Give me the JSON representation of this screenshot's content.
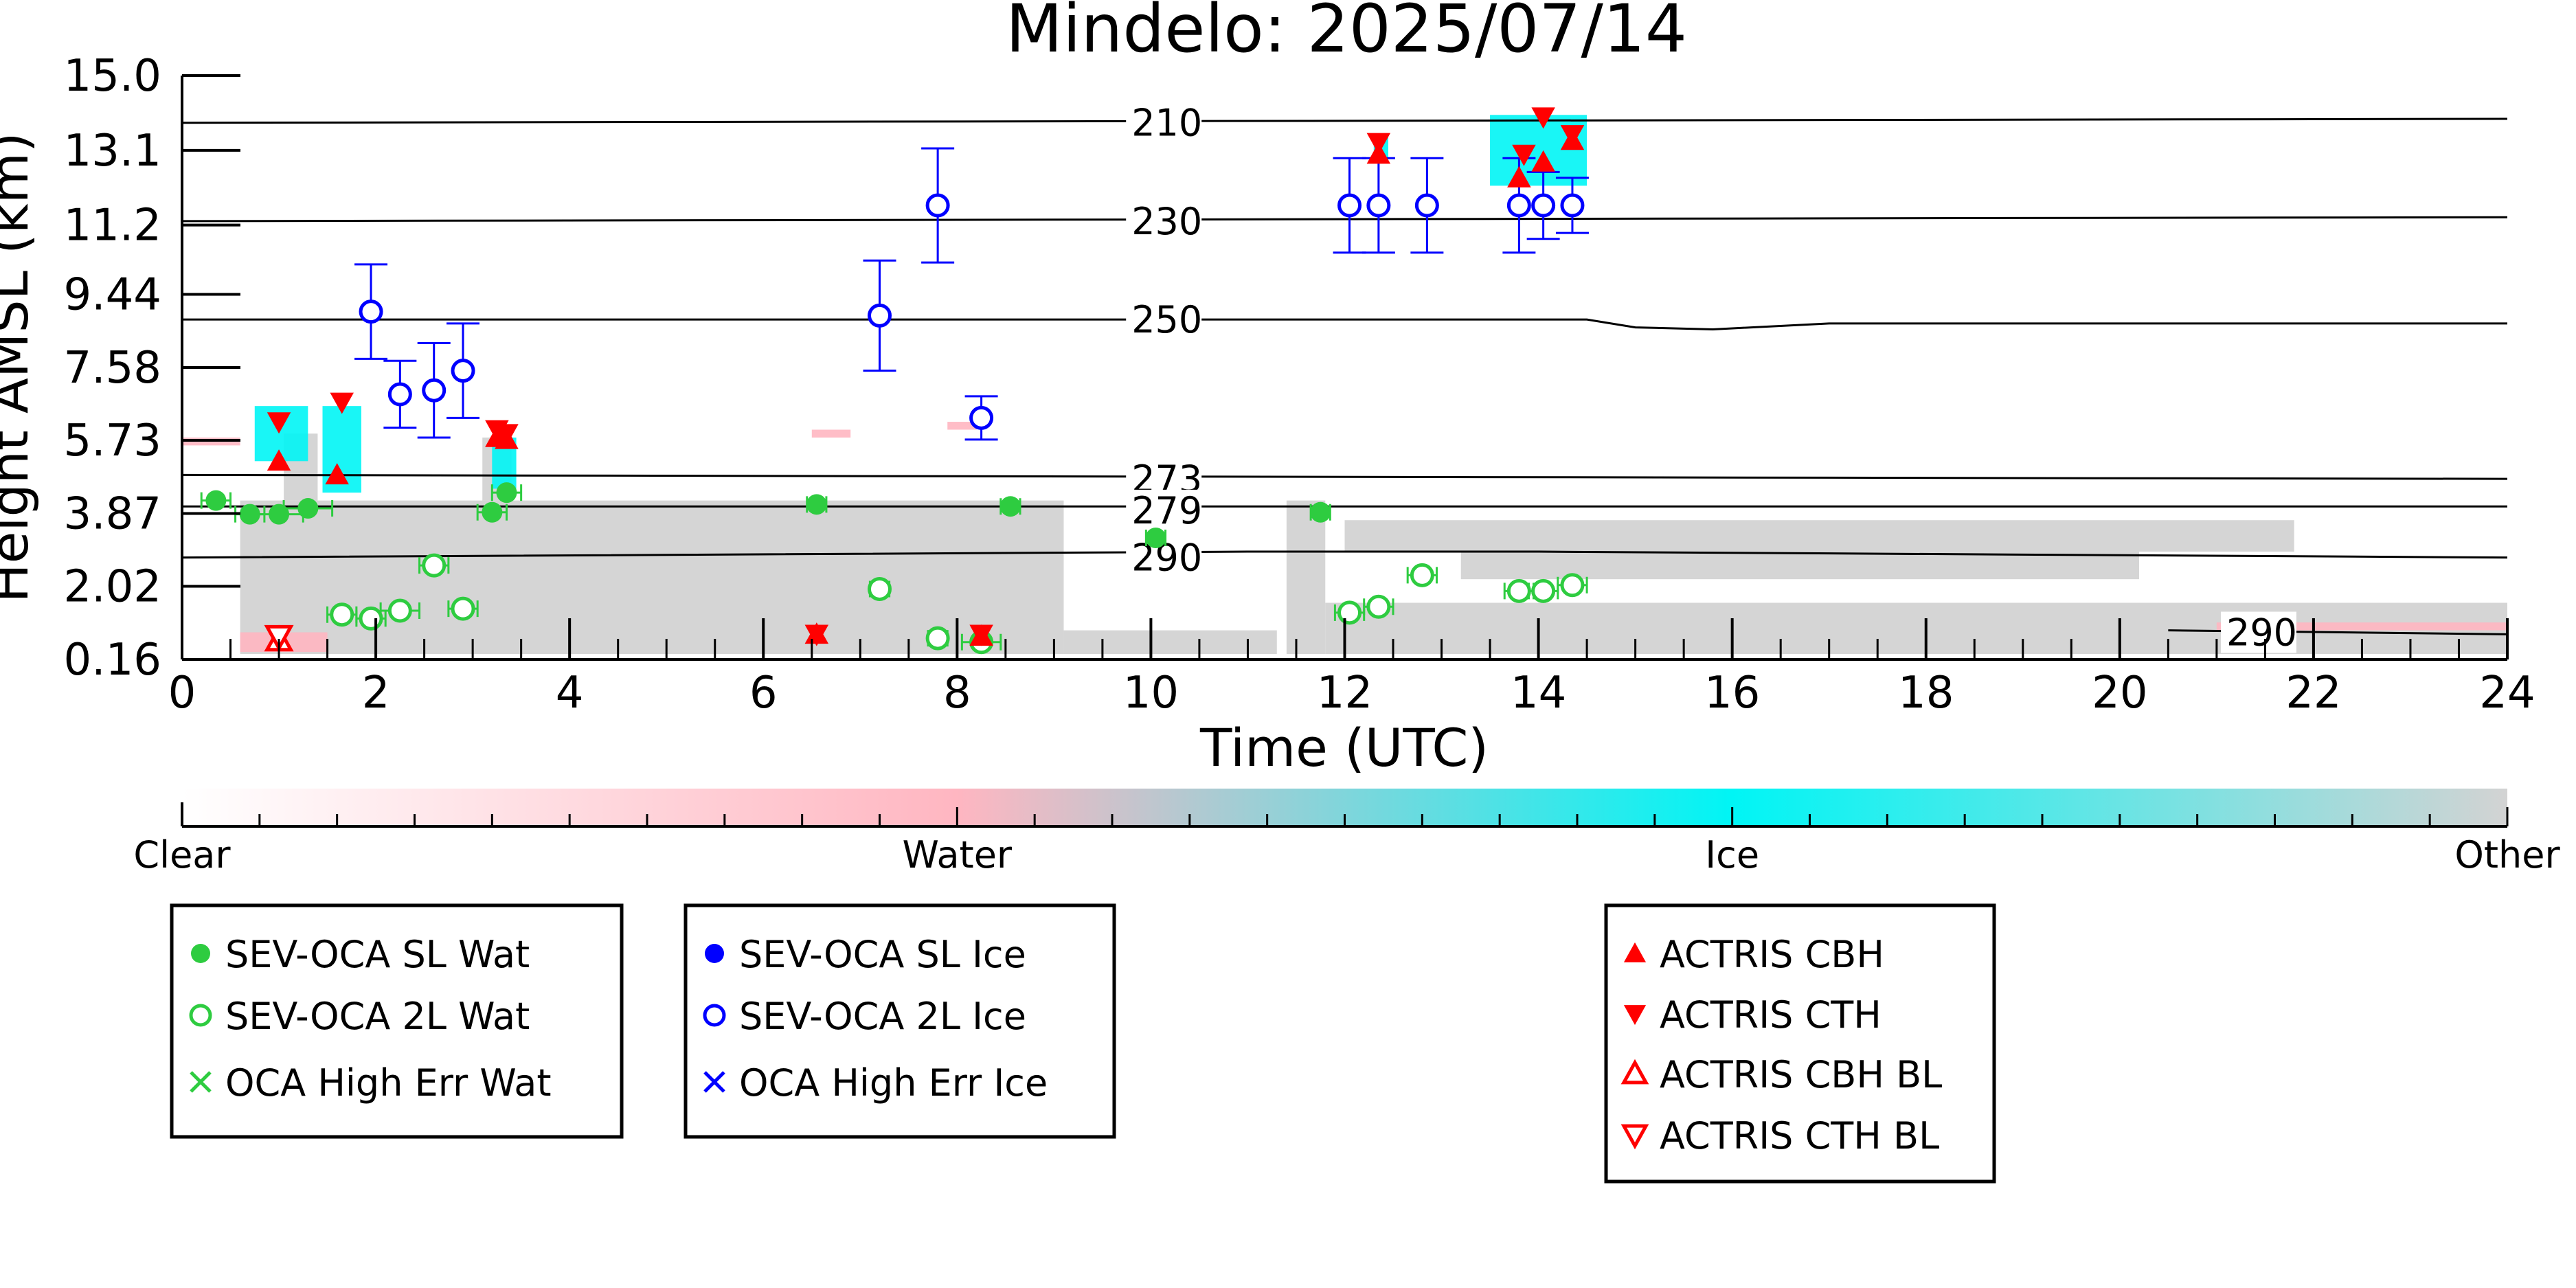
{
  "chart_data": {
    "type": "scatter",
    "title": "Mindelo: 2025/07/14",
    "xlabel": "Time (UTC)",
    "ylabel": "Height AMSL (km)",
    "xlim": [
      0,
      24
    ],
    "ylim": [
      0.16,
      15.0
    ],
    "xticks": [
      "0",
      "2",
      "4",
      "6",
      "8",
      "10",
      "12",
      "14",
      "16",
      "18",
      "20",
      "22",
      "24"
    ],
    "yticks": [
      "15.0",
      "13.1",
      "11.2",
      "9.44",
      "7.58",
      "5.73",
      "3.87",
      "2.02",
      "0.16"
    ],
    "isotherms": [
      {
        "label": "210",
        "points": [
          [
            0,
            13.8
          ],
          [
            24,
            13.9
          ]
        ],
        "label_at": [
          9.8,
          13.8
        ]
      },
      {
        "label": "230",
        "points": [
          [
            0,
            11.3
          ],
          [
            24,
            11.4
          ]
        ],
        "label_at": [
          9.8,
          11.3
        ]
      },
      {
        "label": "250",
        "points": [
          [
            0,
            8.8
          ],
          [
            14.5,
            8.8
          ],
          [
            15.0,
            8.6
          ],
          [
            15.8,
            8.55
          ],
          [
            17,
            8.7
          ],
          [
            24,
            8.7
          ]
        ],
        "label_at": [
          9.8,
          8.8
        ]
      },
      {
        "label": "273",
        "points": [
          [
            0,
            4.85
          ],
          [
            24,
            4.75
          ]
        ],
        "label_at": [
          9.8,
          4.75
        ]
      },
      {
        "label": "279",
        "points": [
          [
            0,
            4.05
          ],
          [
            24,
            4.05
          ]
        ],
        "label_at": [
          9.8,
          3.95
        ]
      },
      {
        "label": "290",
        "points": [
          [
            0,
            2.75
          ],
          [
            11,
            2.9
          ],
          [
            14,
            2.9
          ],
          [
            24,
            2.75
          ]
        ],
        "label_at": [
          9.8,
          2.75
        ]
      },
      {
        "label": "290",
        "points": [
          [
            20.5,
            0.9
          ],
          [
            24,
            0.8
          ]
        ],
        "label_at": [
          21.1,
          0.85
        ]
      }
    ],
    "classification_colorbar": {
      "labels": [
        "Clear",
        "Water",
        "Ice",
        "Other"
      ],
      "colors": [
        "#ffffff",
        "#ffb6c1",
        "#00f5f5",
        "#d3d3d3"
      ]
    },
    "series": [
      {
        "name": "SEV-OCA SL Wat",
        "marker": "filled-circle",
        "color": "#2ecc40",
        "x": [
          0.35,
          0.7,
          1.0,
          1.3,
          3.2,
          3.35,
          6.55,
          8.55,
          10.05,
          11.75
        ],
        "y": [
          4.2,
          3.85,
          3.85,
          4.0,
          3.9,
          4.4,
          4.1,
          4.05,
          3.25,
          3.9
        ],
        "xerr": [
          0.15,
          0.15,
          0.25,
          0.25,
          0.15,
          0.15,
          0.1,
          0.1,
          0.1,
          0.1
        ]
      },
      {
        "name": "SEV-OCA 2L Wat",
        "marker": "open-circle",
        "color": "#2ecc40",
        "x": [
          1.65,
          1.95,
          2.25,
          2.6,
          2.9,
          7.2,
          7.8,
          8.25,
          12.05,
          12.35,
          12.8,
          13.8,
          14.05,
          14.35
        ],
        "y": [
          1.3,
          1.2,
          1.4,
          2.55,
          1.45,
          1.95,
          0.7,
          0.6,
          1.35,
          1.5,
          2.3,
          1.9,
          1.9,
          2.05
        ],
        "xerr": [
          0.15,
          0.15,
          0.2,
          0.15,
          0.15,
          0.1,
          0.1,
          0.2,
          0.15,
          0.15,
          0.15,
          0.15,
          0.15,
          0.15
        ]
      },
      {
        "name": "OCA High Err Wat",
        "marker": "x",
        "color": "#2ecc40",
        "x": [],
        "y": []
      },
      {
        "name": "SEV-OCA SL Ice",
        "marker": "filled-circle",
        "color": "#0000ff",
        "x": [],
        "y": []
      },
      {
        "name": "SEV-OCA 2L Ice",
        "marker": "open-circle",
        "color": "#0000ff",
        "x": [
          1.95,
          2.25,
          2.6,
          2.9,
          7.2,
          7.8,
          8.25,
          12.05,
          12.35,
          12.85,
          13.8,
          14.05,
          14.35
        ],
        "y": [
          9.0,
          6.9,
          7.0,
          7.5,
          8.9,
          11.7,
          6.3,
          11.7,
          11.7,
          11.7,
          11.7,
          11.7,
          11.7
        ],
        "yerr": [
          1.2,
          0.85,
          1.2,
          1.2,
          1.4,
          1.45,
          0.55,
          1.2,
          1.2,
          1.2,
          1.2,
          0.85,
          0.7
        ]
      },
      {
        "name": "OCA High Err Ice",
        "marker": "x",
        "color": "#0000ff",
        "x": [],
        "y": []
      },
      {
        "name": "ACTRIS CBH",
        "marker": "filled-triangle-up",
        "color": "#ff0000",
        "x": [
          1.0,
          1.6,
          3.25,
          3.35,
          6.55,
          8.25,
          12.35,
          13.8,
          14.05,
          14.35
        ],
        "y": [
          5.2,
          4.85,
          5.8,
          5.75,
          0.8,
          0.75,
          13.0,
          12.4,
          12.8,
          13.35
        ]
      },
      {
        "name": "ACTRIS CTH",
        "marker": "filled-triangle-down",
        "color": "#ff0000",
        "x": [
          1.0,
          1.65,
          3.25,
          3.35,
          6.55,
          8.25,
          12.35,
          13.85,
          14.05,
          14.35
        ],
        "y": [
          6.2,
          6.7,
          6.0,
          5.9,
          0.8,
          0.8,
          13.3,
          13.0,
          13.95,
          13.5
        ]
      },
      {
        "name": "ACTRIS CBH BL",
        "marker": "open-triangle-up",
        "color": "#ff0000",
        "x": [
          1.0
        ],
        "y": [
          0.65
        ]
      },
      {
        "name": "ACTRIS CTH BL",
        "marker": "open-triangle-down",
        "color": "#ff0000",
        "x": [
          1.0
        ],
        "y": [
          0.75
        ]
      }
    ],
    "legends": [
      {
        "entries": [
          "SEV-OCA SL Wat",
          "SEV-OCA 2L Wat",
          "OCA High Err Wat"
        ]
      },
      {
        "entries": [
          "SEV-OCA SL Ice",
          "SEV-OCA 2L Ice",
          "OCA High Err Ice"
        ]
      },
      {
        "entries": [
          "ACTRIS CBH",
          "ACTRIS CTH",
          "ACTRIS CBH BL",
          "ACTRIS CTH BL"
        ]
      }
    ],
    "classification_regions": [
      {
        "class": "Other",
        "t0": 0.6,
        "t1": 9.1,
        "h0": 0.3,
        "h1": 4.2
      },
      {
        "class": "Other",
        "t0": 9.1,
        "t1": 11.3,
        "h0": 0.3,
        "h1": 0.9
      },
      {
        "class": "Other",
        "t0": 11.4,
        "t1": 11.8,
        "h0": 0.3,
        "h1": 4.2
      },
      {
        "class": "Other",
        "t0": 11.8,
        "t1": 24.0,
        "h0": 0.3,
        "h1": 1.6
      },
      {
        "class": "Other",
        "t0": 12.0,
        "t1": 21.8,
        "h0": 2.9,
        "h1": 3.7
      },
      {
        "class": "Other",
        "t0": 13.2,
        "t1": 20.2,
        "h0": 2.2,
        "h1": 2.9
      },
      {
        "class": "Other",
        "t0": 1.05,
        "t1": 1.4,
        "h0": 4.2,
        "h1": 5.9
      },
      {
        "class": "Other",
        "t0": 3.1,
        "t1": 3.4,
        "h0": 4.2,
        "h1": 5.8
      },
      {
        "class": "Ice",
        "t0": 0.75,
        "t1": 1.3,
        "h0": 5.2,
        "h1": 6.6
      },
      {
        "class": "Ice",
        "t0": 1.45,
        "t1": 1.85,
        "h0": 4.4,
        "h1": 6.6
      },
      {
        "class": "Ice",
        "t0": 3.2,
        "t1": 3.45,
        "h0": 4.5,
        "h1": 5.8
      },
      {
        "class": "Ice",
        "t0": 12.3,
        "t1": 12.45,
        "h0": 12.8,
        "h1": 13.5
      },
      {
        "class": "Ice",
        "t0": 13.5,
        "t1": 14.5,
        "h0": 12.2,
        "h1": 14.0
      },
      {
        "class": "Water",
        "t0": 0.0,
        "t1": 0.6,
        "h0": 5.6,
        "h1": 5.8
      },
      {
        "class": "Water",
        "t0": 0.6,
        "t1": 1.5,
        "h0": 0.35,
        "h1": 0.85
      },
      {
        "class": "Water",
        "t0": 6.5,
        "t1": 6.9,
        "h0": 5.8,
        "h1": 6.0
      },
      {
        "class": "Water",
        "t0": 7.9,
        "t1": 8.2,
        "h0": 6.0,
        "h1": 6.2
      },
      {
        "class": "Water",
        "t0": 21.0,
        "t1": 24.0,
        "h0": 0.9,
        "h1": 1.1
      }
    ]
  }
}
